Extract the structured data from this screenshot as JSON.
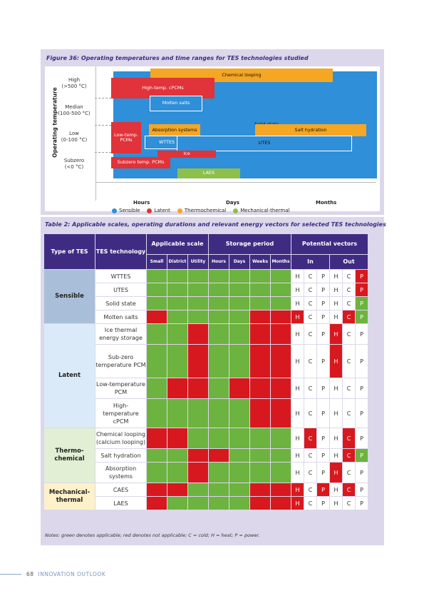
{
  "figure": {
    "caption": "Figure 36: Operating temperatures and time ranges for TES technologies studied",
    "y_axis_title": "Operating temperature",
    "y_levels": [
      {
        "name": "High",
        "range": "(>500 °C)"
      },
      {
        "name": "Median",
        "range": "(100-500 °C)"
      },
      {
        "name": "Low",
        "range": "(0-100 °C)"
      },
      {
        "name": "Subzero",
        "range": "(<0 °C)"
      }
    ],
    "x_labels": [
      "Hours",
      "Days",
      "Months"
    ],
    "bars": [
      {
        "label": "Solid-state",
        "category": "Sensible"
      },
      {
        "label": "Chemical looping",
        "category": "Thermochemical"
      },
      {
        "label": "High-temp. cPCMs",
        "category": "Latent"
      },
      {
        "label": "Molten salts",
        "category": "Sensible"
      },
      {
        "label": "Low-temp. PCMs",
        "category": "Latent"
      },
      {
        "label": "Absorption systems",
        "category": "Thermochemical"
      },
      {
        "label": "Salt hydration",
        "category": "Thermochemical"
      },
      {
        "label": "WTTES",
        "category": "Sensible"
      },
      {
        "label": "UTES",
        "category": "Sensible"
      },
      {
        "label": "Ice",
        "category": "Latent"
      },
      {
        "label": "Subzero temp. PCMs",
        "category": "Latent"
      },
      {
        "label": "LAES",
        "category": "Mechanical-thermal"
      }
    ],
    "legend": [
      {
        "label": "Sensible",
        "color": "#2f8fd8"
      },
      {
        "label": "Latent",
        "color": "#e0333a"
      },
      {
        "label": "Thermochemical",
        "color": "#f5a623"
      },
      {
        "label": "Mechanical-thermal",
        "color": "#8cc04a"
      }
    ]
  },
  "table": {
    "caption": "Table 2: Applicable scales, operating durations and relevant energy vectors for selected TES technologies",
    "headers": {
      "type": "Type of TES",
      "tech": "TES technology",
      "scale": "Applicable scale",
      "period": "Storage period",
      "vectors": "Potential vectors",
      "scale_cols": [
        "Small",
        "District",
        "Utility"
      ],
      "period_cols": [
        "Hours",
        "Days",
        "Weeks",
        "Months"
      ],
      "in": "In",
      "out": "Out"
    },
    "groups": [
      {
        "name": "Sensible",
        "bg": "#a9bfd9"
      },
      {
        "name": "Latent",
        "bg": "#dbeaf8"
      },
      {
        "name": "Thermo-chemical",
        "bg": "#e2efd5"
      },
      {
        "name": "Mechanical-thermal",
        "bg": "#fdf1c9"
      }
    ],
    "rows": [
      {
        "tech": "WTTES",
        "applicable": "GGGGGGG",
        "vectors": "HCPHCP",
        "vec_applicable": "WWWWWR"
      },
      {
        "tech": "UTES",
        "applicable": "GGGGGGG",
        "vectors": "HCPHCP",
        "vec_applicable": "WWWWWR"
      },
      {
        "tech": "Solid state",
        "applicable": "GGGGGGG",
        "vectors": "HCPHCP",
        "vec_applicable": "WWWWWG"
      },
      {
        "tech": "Molten salts",
        "applicable": "RGGGGRR",
        "vectors": "HCPHCP",
        "vec_applicable": "RWWWRG"
      },
      {
        "tech": "Ice thermal energy storage",
        "applicable": "GGRGGRR",
        "vectors": "HCPHCP",
        "vec_applicable": "WWWRWW"
      },
      {
        "tech": "Sub-zero temperature PCM",
        "applicable": "GGRGGRR",
        "vectors": "HCPHCP",
        "vec_applicable": "WWWRWW"
      },
      {
        "tech": "Low-temperature PCM",
        "applicable": "GRRGRRR",
        "vectors": "HCPHCP",
        "vec_applicable": "WWWWWW"
      },
      {
        "tech": "High-temperature cPCM",
        "applicable": "GGGGGRR",
        "vectors": "HCPHCP",
        "vec_applicable": "WWWWWW"
      },
      {
        "tech": "Chemical looping (calcium looping)",
        "applicable": "RRGGGGG",
        "vectors": "HCPHCP",
        "vec_applicable": "WRWWRW"
      },
      {
        "tech": "Salt hydration",
        "applicable": "GGRRGGG",
        "vectors": "HCPHCP",
        "vec_applicable": "WWWWRG"
      },
      {
        "tech": "Absorption systems",
        "applicable": "GGRGGGG",
        "vectors": "HCPHCP",
        "vec_applicable": "WWWRWW"
      },
      {
        "tech": "CAES",
        "applicable": "RRGGGRR",
        "vectors": "HCPHCP",
        "vec_applicable": "RWRWRW"
      },
      {
        "tech": "LAES",
        "applicable": "RGGGGRR",
        "vectors": "HCPHCP",
        "vec_applicable": "RWWWWW"
      }
    ],
    "notes": "Notes: green denotes applicable; red denotes not applicable; C = cold; H = heat; P = power."
  },
  "footer": {
    "page": "68",
    "title": "INNOVATION OUTLOOK"
  }
}
